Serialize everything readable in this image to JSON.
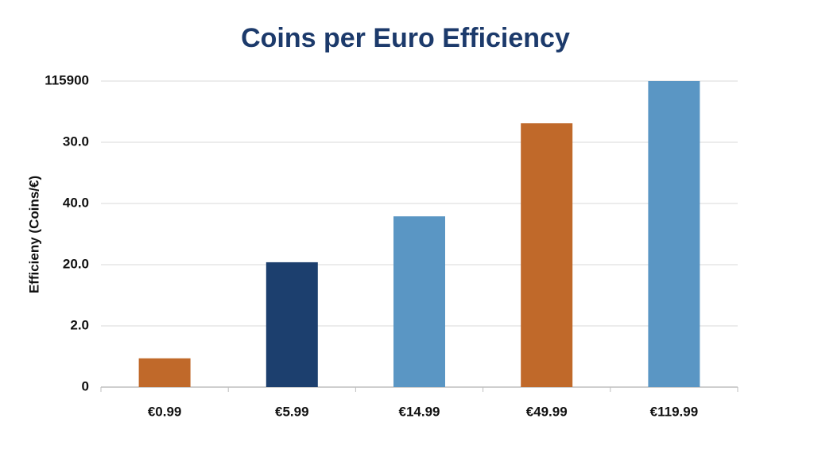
{
  "chart_data": {
    "type": "bar",
    "title": "Coins per Euro Efficiency",
    "y_label": "Efficieny (Coins/€)",
    "categories": [
      "€0.99",
      "€5.99",
      "€14.99",
      "€49.99",
      "€119.99"
    ],
    "values": [
      0.47,
      2.04,
      2.79,
      4.31,
      5.0
    ],
    "colors": [
      "#c0692a",
      "#1c3f6e",
      "#5a96c4",
      "#c0692a",
      "#5a96c4"
    ],
    "ylim": [
      0,
      5
    ],
    "yticks": [
      0,
      {
        "value": 1,
        "label": "2.0"
      },
      {
        "value": 2,
        "label": "20.0"
      },
      {
        "value": 3,
        "label": "40.0"
      },
      {
        "value": 4,
        "label": "30.0"
      },
      {
        "value": 5,
        "label": "115900"
      }
    ],
    "grid": true
  }
}
